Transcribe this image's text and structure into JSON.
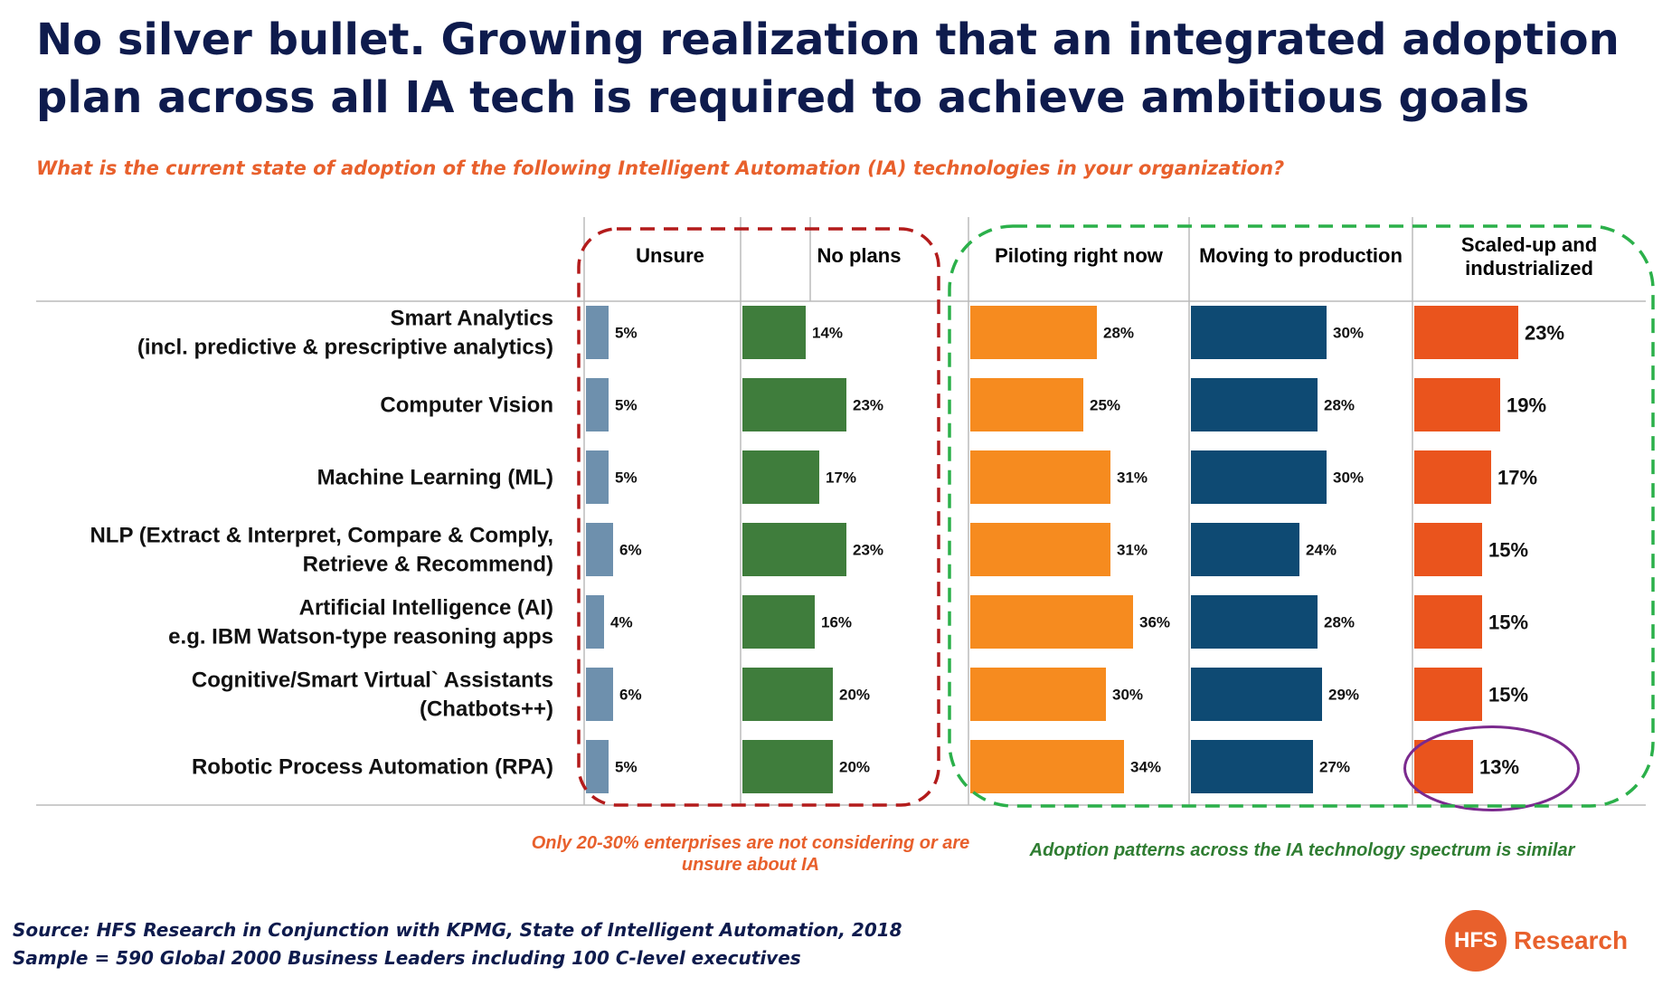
{
  "title": "No silver bullet.  Growing realization that an integrated adoption plan across all IA tech is required to achieve ambitious goals",
  "subtitle": "What is the current state of adoption of the following Intelligent Automation (IA) technologies in your organization?",
  "chart_data": {
    "type": "bar",
    "orientation": "horizontal",
    "categories": [
      [
        "Smart Analytics",
        "(incl. predictive & prescriptive analytics)"
      ],
      [
        "Computer Vision"
      ],
      [
        "Machine Learning (ML)"
      ],
      [
        "NLP (Extract & Interpret, Compare & Comply,",
        "Retrieve &  Recommend)"
      ],
      [
        "Artificial Intelligence (AI)",
        "e.g. IBM Watson-type reasoning apps"
      ],
      [
        "Cognitive/Smart Virtual` Assistants",
        "(Chatbots++)"
      ],
      [
        "Robotic Process Automation (RPA)"
      ]
    ],
    "series": [
      {
        "name": [
          "Unsure"
        ],
        "values": [
          5,
          5,
          5,
          6,
          4,
          6,
          5
        ],
        "color": "#6e90ad"
      },
      {
        "name": [
          "No plans"
        ],
        "values": [
          14,
          23,
          17,
          23,
          16,
          20,
          20
        ],
        "color": "#3f7d3c"
      },
      {
        "name": [
          "Piloting right now"
        ],
        "values": [
          28,
          25,
          31,
          31,
          36,
          30,
          34
        ],
        "color": "#f68b1f"
      },
      {
        "name": [
          "Moving to production"
        ],
        "values": [
          30,
          28,
          30,
          24,
          28,
          29,
          27
        ],
        "color": "#0e4a73"
      },
      {
        "name": [
          "Scaled-up and",
          "industrialized"
        ],
        "values": [
          23,
          19,
          17,
          15,
          15,
          15,
          13
        ],
        "color": "#ea541d"
      }
    ],
    "value_suffix": "%",
    "highlighted": {
      "series": 4,
      "category": 6,
      "color": "#7b2a8e"
    },
    "groups": [
      {
        "series": [
          0,
          1
        ],
        "outline_color": "#b31b1b"
      },
      {
        "series": [
          2,
          3,
          4
        ],
        "outline_color": "#2bb04a"
      }
    ]
  },
  "annotations": {
    "left": "Only 20-30% enterprises are not considering or are unsure about IA",
    "right": "Adoption patterns across the IA technology spectrum is similar"
  },
  "source": {
    "line1": "Source: HFS Research in Conjunction with KPMG, State of Intelligent Automation, 2018",
    "line2": "Sample = 590 Global 2000 Business Leaders including 100 C-level executives"
  },
  "logo": {
    "badge": "HFS",
    "text": "Research"
  }
}
